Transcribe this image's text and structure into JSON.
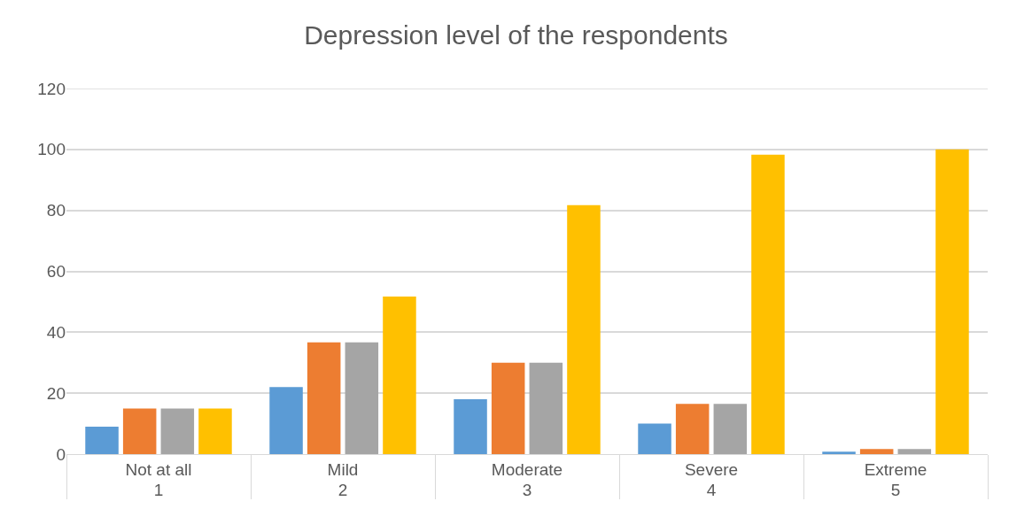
{
  "chart_data": {
    "type": "bar",
    "title": "Depression level of the respondents",
    "categories": [
      "Not at all\n1",
      "Mild\n2",
      "Moderate\n3",
      "Severe\n4",
      "Extreme\n5"
    ],
    "series": [
      {
        "color": "#5b9bd5",
        "values": [
          9,
          22,
          18,
          10,
          0.8
        ]
      },
      {
        "color": "#ed7d31",
        "values": [
          15,
          36.7,
          30,
          16.5,
          1.7
        ]
      },
      {
        "color": "#a5a5a5",
        "values": [
          15,
          36.7,
          30,
          16.5,
          1.7
        ]
      },
      {
        "color": "#ffc000",
        "values": [
          15,
          51.7,
          81.7,
          98.3,
          100
        ]
      }
    ],
    "ylim": [
      0,
      120
    ],
    "yticks": [
      0,
      20,
      40,
      60,
      80,
      100,
      120
    ],
    "grid": "y"
  }
}
